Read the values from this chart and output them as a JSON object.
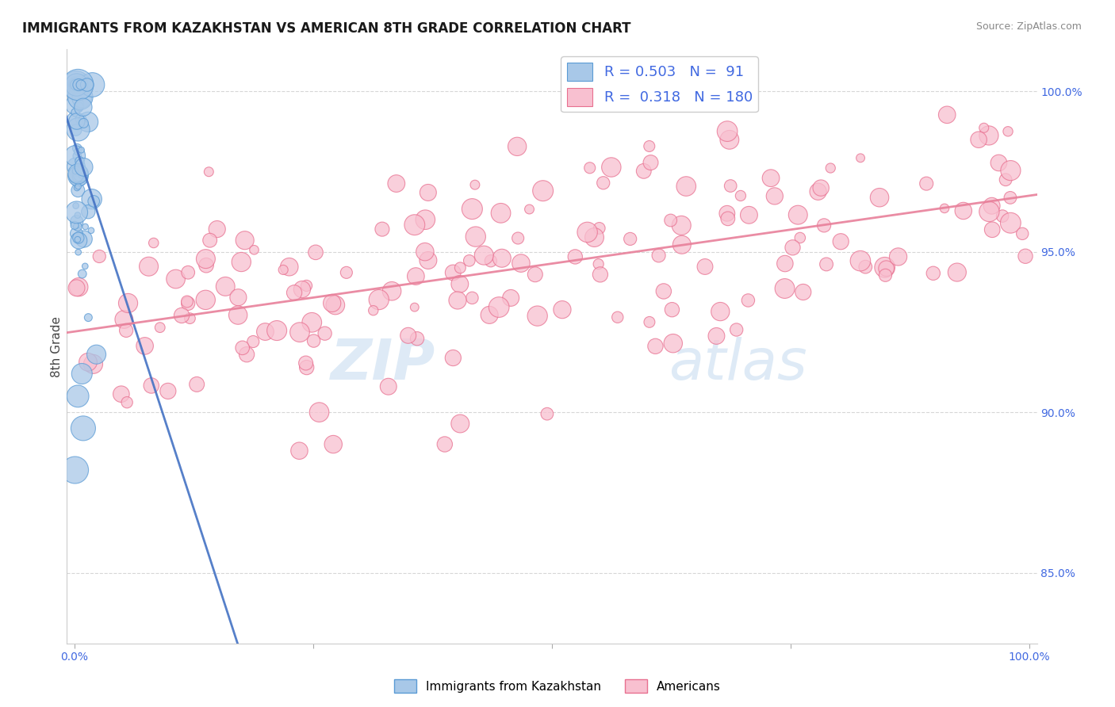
{
  "title": "IMMIGRANTS FROM KAZAKHSTAN VS AMERICAN 8TH GRADE CORRELATION CHART",
  "source": "Source: ZipAtlas.com",
  "ylabel": "8th Grade",
  "legend_entries": [
    {
      "label": "Immigrants from Kazakhstan",
      "color": "#a8c8e8",
      "edge_color": "#5b9bd5",
      "R": 0.503,
      "N": 91
    },
    {
      "label": "Americans",
      "color": "#f8c0d0",
      "edge_color": "#e87090",
      "R": 0.318,
      "N": 180
    }
  ],
  "right_yticks": [
    85.0,
    90.0,
    95.0,
    100.0
  ],
  "watermark_zip": "ZIP",
  "watermark_atlas": "atlas",
  "blue_line_color": "#4472c4",
  "pink_line_color": "#e8809a",
  "axis_label_color": "#4169e1",
  "background_color": "#ffffff",
  "ylim_low": 0.828,
  "ylim_high": 1.013,
  "xlim_low": -0.008,
  "xlim_high": 1.008
}
